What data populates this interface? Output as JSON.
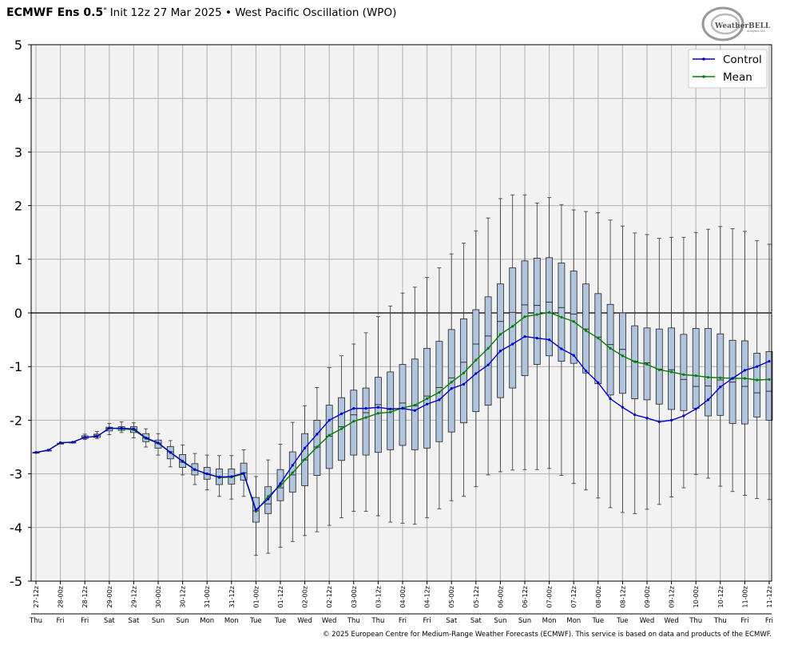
{
  "header": {
    "model": "ECMWF Ens 0.5",
    "degree": "°",
    "subtitle": "Init 12z 27 Mar 2025 • West Pacific Oscillation (WPO)"
  },
  "logo": {
    "text": "WeatherBELL",
    "subtext": "Analytics LLC"
  },
  "footer": "© 2025 European Centre for Medium-Range Weather Forecasts (ECMWF). This service is based on data and products of the ECMWF.",
  "colors": {
    "control": "#0000cc",
    "mean": "#008000",
    "box_fill": "#b0c4de",
    "plot_bg": "#f2f2f2",
    "grid": "#b0b0b0"
  },
  "chart_data": {
    "type": "box",
    "ylim": [
      -5,
      5
    ],
    "yticks": [
      "5",
      "4",
      "3",
      "2",
      "1",
      "0",
      "-1",
      "-2",
      "-3",
      "-4",
      "-5"
    ],
    "grid": true,
    "legend_position": "top-right",
    "legend": [
      "Control",
      "Mean"
    ],
    "x_labels": [
      "27-12z",
      "28-00z",
      "28-12z",
      "29-00z",
      "29-12z",
      "30-00z",
      "30-12z",
      "31-00z",
      "31-12z",
      "01-00z",
      "01-12z",
      "02-00z",
      "02-12z",
      "03-00z",
      "03-12z",
      "04-00z",
      "04-12z",
      "05-00z",
      "05-12z",
      "06-00z",
      "06-12z",
      "07-00z",
      "07-12z",
      "08-00z",
      "08-12z",
      "09-00z",
      "09-12z",
      "10-00z",
      "10-12z",
      "11-00z",
      "11-12z"
    ],
    "day_labels": [
      "Thu",
      "Fri",
      "Fri",
      "Sat",
      "Sat",
      "Sun",
      "Sun",
      "Mon",
      "Mon",
      "Tue",
      "Tue",
      "Wed",
      "Wed",
      "Thu",
      "Thu",
      "Fri",
      "Fri",
      "Sat",
      "Sat",
      "Sun",
      "Sun",
      "Mon",
      "Mon",
      "Tue",
      "Tue",
      "Wed",
      "Wed",
      "Thu",
      "Thu",
      "Fri",
      "Fri"
    ],
    "steps": [
      {
        "min": -2.6,
        "q1": -2.6,
        "med": -2.6,
        "q3": -2.6,
        "max": -2.6
      },
      {
        "min": -2.56,
        "q1": -2.56,
        "med": -2.56,
        "q3": -2.56,
        "max": -2.56
      },
      {
        "min": -2.43,
        "q1": -2.43,
        "med": -2.43,
        "q3": -2.43,
        "max": -2.43
      },
      {
        "min": -2.41,
        "q1": -2.41,
        "med": -2.41,
        "q3": -2.41,
        "max": -2.41
      },
      {
        "min": -2.36,
        "q1": -2.34,
        "med": -2.32,
        "q3": -2.29,
        "max": -2.26
      },
      {
        "min": -2.34,
        "q1": -2.32,
        "med": -2.28,
        "q3": -2.26,
        "max": -2.21
      },
      {
        "min": -2.27,
        "q1": -2.2,
        "med": -2.15,
        "q3": -2.13,
        "max": -2.06
      },
      {
        "min": -2.23,
        "q1": -2.19,
        "med": -2.16,
        "q3": -2.12,
        "max": -2.03
      },
      {
        "min": -2.33,
        "q1": -2.23,
        "med": -2.17,
        "q3": -2.12,
        "max": -2.05
      },
      {
        "min": -2.5,
        "q1": -2.4,
        "med": -2.33,
        "q3": -2.25,
        "max": -2.16
      },
      {
        "min": -2.65,
        "q1": -2.52,
        "med": -2.43,
        "q3": -2.37,
        "max": -2.25
      },
      {
        "min": -2.87,
        "q1": -2.72,
        "med": -2.59,
        "q3": -2.49,
        "max": -2.38
      },
      {
        "min": -3.02,
        "q1": -2.88,
        "med": -2.78,
        "q3": -2.64,
        "max": -2.46
      },
      {
        "min": -3.2,
        "q1": -3.02,
        "med": -2.93,
        "q3": -2.81,
        "max": -2.62
      },
      {
        "min": -3.3,
        "q1": -3.1,
        "med": -3.0,
        "q3": -2.88,
        "max": -2.65
      },
      {
        "min": -3.42,
        "q1": -3.2,
        "med": -3.05,
        "q3": -2.91,
        "max": -2.66
      },
      {
        "min": -3.47,
        "q1": -3.19,
        "med": -3.05,
        "q3": -2.91,
        "max": -2.66
      },
      {
        "min": -3.42,
        "q1": -3.12,
        "med": -2.98,
        "q3": -2.8,
        "max": -2.55
      },
      {
        "min": -4.52,
        "q1": -3.9,
        "med": -3.69,
        "q3": -3.44,
        "max": -3.05
      },
      {
        "min": -4.48,
        "q1": -3.74,
        "med": -3.56,
        "q3": -3.24,
        "max": -2.74
      },
      {
        "min": -4.37,
        "q1": -3.5,
        "med": -3.26,
        "q3": -2.92,
        "max": -2.45
      },
      {
        "min": -4.26,
        "q1": -3.34,
        "med": -3.02,
        "q3": -2.59,
        "max": -2.04
      },
      {
        "min": -4.15,
        "q1": -3.22,
        "med": -2.74,
        "q3": -2.25,
        "max": -1.73
      },
      {
        "min": -4.08,
        "q1": -3.03,
        "med": -2.5,
        "q3": -2.0,
        "max": -1.39
      },
      {
        "min": -3.96,
        "q1": -2.9,
        "med": -2.3,
        "q3": -1.72,
        "max": -1.02
      },
      {
        "min": -3.82,
        "q1": -2.75,
        "med": -2.12,
        "q3": -1.58,
        "max": -0.8
      },
      {
        "min": -3.7,
        "q1": -2.65,
        "med": -1.9,
        "q3": -1.44,
        "max": -0.58
      },
      {
        "min": -3.7,
        "q1": -2.65,
        "med": -1.86,
        "q3": -1.4,
        "max": -0.37
      },
      {
        "min": -3.78,
        "q1": -2.6,
        "med": -1.71,
        "q3": -1.2,
        "max": -0.07
      },
      {
        "min": -3.9,
        "q1": -2.55,
        "med": -1.8,
        "q3": -1.1,
        "max": 0.13
      },
      {
        "min": -3.92,
        "q1": -2.47,
        "med": -1.68,
        "q3": -0.96,
        "max": 0.37
      },
      {
        "min": -3.94,
        "q1": -2.55,
        "med": -1.73,
        "q3": -0.86,
        "max": 0.48
      },
      {
        "min": -3.82,
        "q1": -2.52,
        "med": -1.55,
        "q3": -0.66,
        "max": 0.66
      },
      {
        "min": -3.65,
        "q1": -2.4,
        "med": -1.39,
        "q3": -0.53,
        "max": 0.84
      },
      {
        "min": -3.5,
        "q1": -2.22,
        "med": -1.21,
        "q3": -0.31,
        "max": 1.1
      },
      {
        "min": -3.42,
        "q1": -2.05,
        "med": -0.92,
        "q3": -0.11,
        "max": 1.3
      },
      {
        "min": -3.24,
        "q1": -1.84,
        "med": -0.58,
        "q3": 0.06,
        "max": 1.53
      },
      {
        "min": -3.02,
        "q1": -1.72,
        "med": -0.43,
        "q3": 0.3,
        "max": 1.77
      },
      {
        "min": -2.96,
        "q1": -1.58,
        "med": -0.16,
        "q3": 0.54,
        "max": 2.13
      },
      {
        "min": -2.93,
        "q1": -1.4,
        "med": 0.01,
        "q3": 0.84,
        "max": 2.2
      },
      {
        "min": -2.92,
        "q1": -1.17,
        "med": 0.15,
        "q3": 0.97,
        "max": 2.2
      },
      {
        "min": -2.92,
        "q1": -0.96,
        "med": 0.14,
        "q3": 1.02,
        "max": 2.05
      },
      {
        "min": -2.9,
        "q1": -0.8,
        "med": 0.2,
        "q3": 1.03,
        "max": 2.15
      },
      {
        "min": -3.03,
        "q1": -0.9,
        "med": 0.1,
        "q3": 0.93,
        "max": 2.02
      },
      {
        "min": -3.18,
        "q1": -0.94,
        "med": -0.02,
        "q3": 0.78,
        "max": 1.92
      },
      {
        "min": -3.3,
        "q1": -1.12,
        "med": -0.3,
        "q3": 0.54,
        "max": 1.89
      },
      {
        "min": -3.45,
        "q1": -1.32,
        "med": -0.45,
        "q3": 0.36,
        "max": 1.87
      },
      {
        "min": -3.63,
        "q1": -1.53,
        "med": -0.59,
        "q3": 0.16,
        "max": 1.73
      },
      {
        "min": -3.72,
        "q1": -1.5,
        "med": -0.68,
        "q3": 0.0,
        "max": 1.62
      },
      {
        "min": -3.74,
        "q1": -1.6,
        "med": -0.9,
        "q3": -0.24,
        "max": 1.49
      },
      {
        "min": -3.66,
        "q1": -1.62,
        "med": -0.93,
        "q3": -0.28,
        "max": 1.46
      },
      {
        "min": -3.57,
        "q1": -1.7,
        "med": -1.05,
        "q3": -0.3,
        "max": 1.39
      },
      {
        "min": -3.43,
        "q1": -1.8,
        "med": -1.06,
        "q3": -0.28,
        "max": 1.41
      },
      {
        "min": -3.26,
        "q1": -1.82,
        "med": -1.24,
        "q3": -0.4,
        "max": 1.41
      },
      {
        "min": -3.01,
        "q1": -1.78,
        "med": -1.37,
        "q3": -0.29,
        "max": 1.5
      },
      {
        "min": -3.08,
        "q1": -1.92,
        "med": -1.36,
        "q3": -0.29,
        "max": 1.56
      },
      {
        "min": -3.23,
        "q1": -1.91,
        "med": -1.25,
        "q3": -0.39,
        "max": 1.61
      },
      {
        "min": -3.33,
        "q1": -2.06,
        "med": -1.29,
        "q3": -0.51,
        "max": 1.57
      },
      {
        "min": -3.4,
        "q1": -2.07,
        "med": -1.37,
        "q3": -0.52,
        "max": 1.52
      },
      {
        "min": -3.46,
        "q1": -1.94,
        "med": -1.49,
        "q3": -0.75,
        "max": 1.35
      },
      {
        "min": -3.48,
        "q1": -2.0,
        "med": -1.46,
        "q3": -0.72,
        "max": 1.28
      }
    ],
    "series": [
      {
        "name": "Control",
        "values": [
          -2.6,
          -2.56,
          -2.42,
          -2.41,
          -2.32,
          -2.3,
          -2.15,
          -2.15,
          -2.16,
          -2.33,
          -2.42,
          -2.6,
          -2.77,
          -2.92,
          -3.0,
          -3.06,
          -3.05,
          -2.99,
          -3.67,
          -3.47,
          -3.18,
          -2.84,
          -2.52,
          -2.26,
          -2.0,
          -1.88,
          -1.78,
          -1.78,
          -1.76,
          -1.79,
          -1.78,
          -1.82,
          -1.7,
          -1.62,
          -1.41,
          -1.33,
          -1.13,
          -0.97,
          -0.71,
          -0.58,
          -0.44,
          -0.47,
          -0.5,
          -0.67,
          -0.79,
          -1.08,
          -1.3,
          -1.6,
          -1.76,
          -1.9,
          -1.96,
          -2.03,
          -2.0,
          -1.92,
          -1.79,
          -1.62,
          -1.38,
          -1.22,
          -1.07,
          -1.0,
          -0.9
        ]
      },
      {
        "name": "Mean",
        "values": [
          -2.6,
          -2.56,
          -2.42,
          -2.41,
          -2.32,
          -2.3,
          -2.15,
          -2.16,
          -2.18,
          -2.34,
          -2.43,
          -2.6,
          -2.76,
          -2.92,
          -3.0,
          -3.07,
          -3.06,
          -3.0,
          -3.7,
          -3.42,
          -3.22,
          -2.98,
          -2.73,
          -2.5,
          -2.28,
          -2.16,
          -2.02,
          -1.95,
          -1.87,
          -1.85,
          -1.77,
          -1.72,
          -1.6,
          -1.48,
          -1.29,
          -1.12,
          -0.88,
          -0.66,
          -0.4,
          -0.25,
          -0.07,
          -0.03,
          0.01,
          -0.08,
          -0.16,
          -0.33,
          -0.47,
          -0.66,
          -0.8,
          -0.91,
          -0.96,
          -1.06,
          -1.1,
          -1.15,
          -1.17,
          -1.2,
          -1.21,
          -1.22,
          -1.22,
          -1.25,
          -1.24
        ]
      }
    ]
  }
}
